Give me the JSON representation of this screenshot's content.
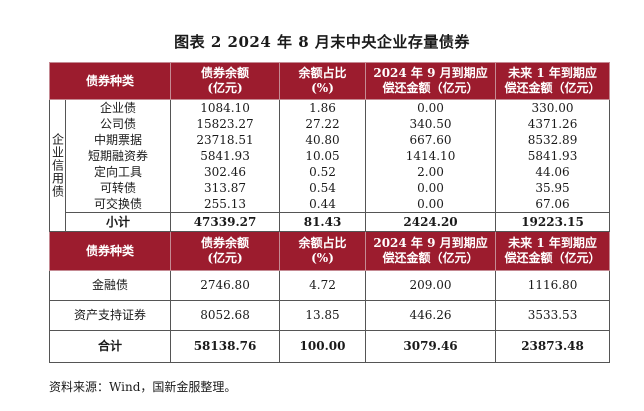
{
  "title": "图表 2 2024 年 8 月末中央企业存量债券",
  "header1": [
    "债券种类",
    "债券余额\n(亿元)",
    "余额占比\n(%)",
    "2024 年 9 月到期应\n偿还金额（亿元）",
    "未来 1 年到期应\n偿还金额（亿元）"
  ],
  "category_label": "企业信用债",
  "section1_rows": [
    {
      "name": "企业债",
      "balance": "1084.10",
      "share": "1.86",
      "sep": "0.00",
      "year": "330.00"
    },
    {
      "name": "公司债",
      "balance": "15823.27",
      "share": "27.22",
      "sep": "340.50",
      "year": "4371.26"
    },
    {
      "name": "中期票据",
      "balance": "23718.51",
      "share": "40.80",
      "sep": "667.60",
      "year": "8532.89"
    },
    {
      "name": "短期融资券",
      "balance": "5841.93",
      "share": "10.05",
      "sep": "1414.10",
      "year": "5841.93"
    },
    {
      "name": "定向工具",
      "balance": "302.46",
      "share": "0.52",
      "sep": "2.00",
      "year": "44.06"
    },
    {
      "name": "可转债",
      "balance": "313.87",
      "share": "0.54",
      "sep": "0.00",
      "year": "35.95"
    },
    {
      "name": "可交换债",
      "balance": "255.13",
      "share": "0.44",
      "sep": "0.00",
      "year": "67.06"
    }
  ],
  "subtotal": {
    "name": "小计",
    "balance": "47339.27",
    "share": "81.43",
    "sep": "2424.20",
    "year": "19223.15"
  },
  "header2": [
    "债券种类",
    "债券余额\n(亿元)",
    "余额占比\n(%)",
    "2024 年 9 月到期应\n偿还金额（亿元）",
    "未来 1 年到期应\n偿还金额（亿元）"
  ],
  "section2_rows": [
    {
      "name": "金融债",
      "balance": "2746.80",
      "share": "4.72",
      "sep": "209.00",
      "year": "1116.80"
    },
    {
      "name": "资产支持证券",
      "balance": "8052.68",
      "share": "13.85",
      "sep": "446.26",
      "year": "3533.53"
    }
  ],
  "grand_total": {
    "name": "合计",
    "balance": "58138.76",
    "share": "100.00",
    "sep": "3079.46",
    "year": "23873.48"
  },
  "source": "资料来源：Wind，国新金服整理。",
  "colors": {
    "header_bg": "#9c1c2e",
    "header_text": "#ffffff"
  }
}
